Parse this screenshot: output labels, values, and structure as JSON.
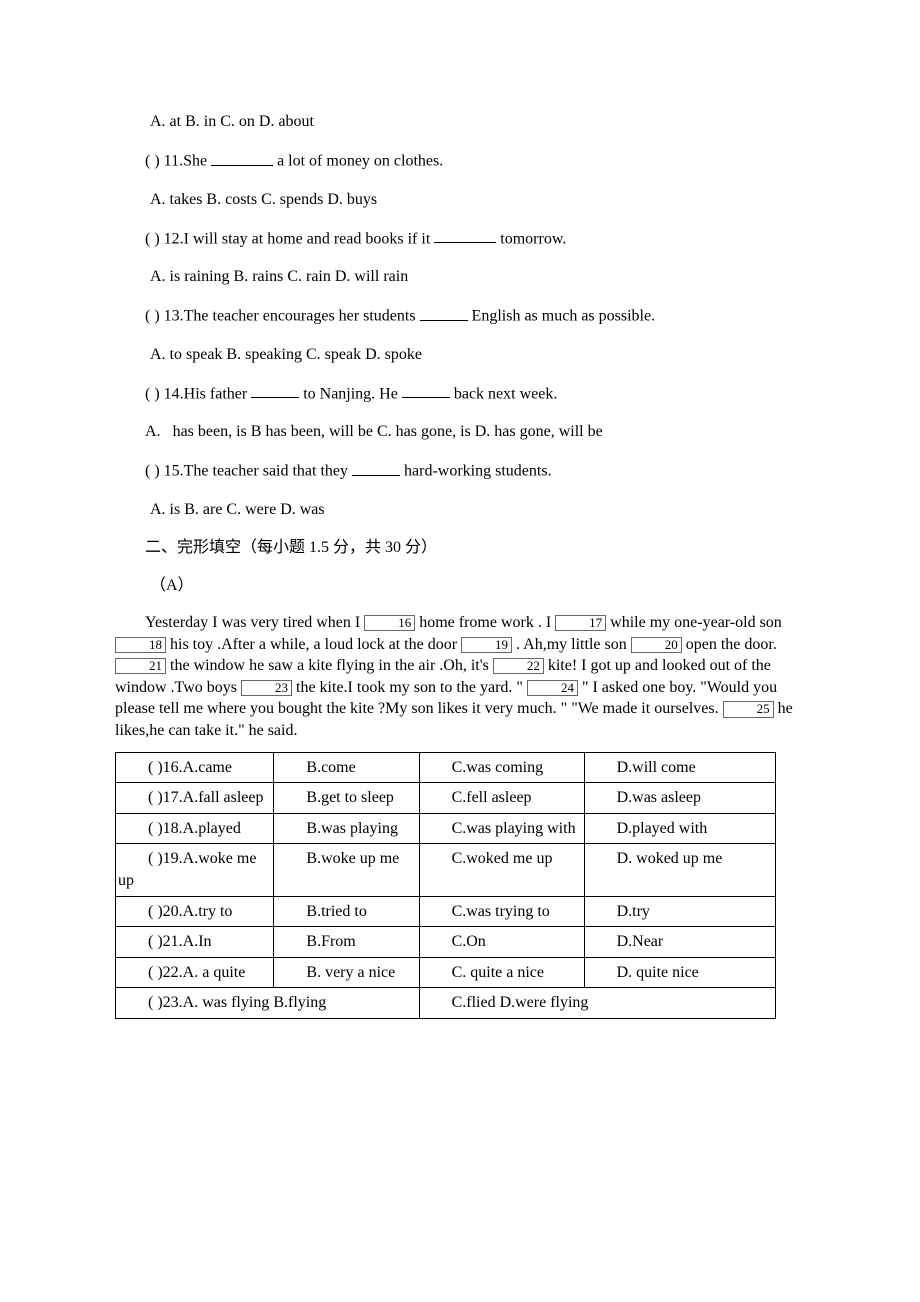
{
  "q10": {
    "options": "A. at B. in C. on D. about"
  },
  "q11": {
    "stem_a": "( ) 11.She ",
    "stem_b": " a lot of money on clothes.",
    "options": "A. takes B. costs C. spends D. buys"
  },
  "q12": {
    "stem_a": "( ) 12.I will stay at home and read books if it ",
    "stem_b": " tomorrow.",
    "options": "A. is raining B. rains C. rain D. will rain"
  },
  "q13": {
    "stem_a": "( ) 13.The teacher encourages her students ",
    "stem_b": " English as much as possible.",
    "options": "A. to speak B. speaking C. speak D. spoke"
  },
  "q14": {
    "stem_a": "( ) 14.His father ",
    "stem_b": " to Nanjing. He ",
    "stem_c": " back next week.",
    "options_prefix": "A.",
    "options_rest": "has been, is B has been, will be    C. has gone, is D. has gone, will be"
  },
  "q15": {
    "stem_a": "( ) 15.The teacher said that they ",
    "stem_b": " hard-working students.",
    "options": "A. is B. are C. were D. was"
  },
  "section2": {
    "title": "二、完形填空（每小题 1.5 分，共 30 分）",
    "subtitle": "（A）"
  },
  "passage": {
    "p1": "Yesterday I was very tired when I ",
    "b16": "16",
    "p2": " home frome work . I ",
    "b17": "17",
    "p3": " while my one-year-old son ",
    "b18": "18",
    "p4": " his toy .After a while, a loud lock at the door ",
    "b19": "19",
    "p5": " . Ah,my little son ",
    "b20": "20",
    "p6": " open the door. ",
    "b21": "21",
    "p7": " the window he saw a kite flying in the air .Oh, it's ",
    "b22": "22",
    "p8": " kite! I got up and looked out of the window .Two boys ",
    "b23": "23",
    "p9": " the kite.I took my son to the yard. \" ",
    "b24": "24",
    "p10": " \" I asked one boy. \"Would you please tell me where you bought the kite ?My son likes it very much. \" \"We made it ourselves. ",
    "b25": "25",
    "p11": " he likes,he can take it.\" he said."
  },
  "table": {
    "r16": {
      "a": "( )16.A.came",
      "b": "B.come",
      "c": "C.was coming",
      "d": "D.will come"
    },
    "r17": {
      "a": "( )17.A.fall asleep",
      "b": "B.get to sleep",
      "c": "C.fell asleep",
      "d": "D.was asleep"
    },
    "r18": {
      "a": "( )18.A.played",
      "b": "B.was playing",
      "c": "C.was playing with",
      "d": "D.played with"
    },
    "r19": {
      "a": "( )19.A.woke me up",
      "b": "B.woke up me",
      "c": "C.woked me up",
      "d": "D. woked up me"
    },
    "r20": {
      "a": "( )20.A.try to",
      "b": "B.tried to",
      "c": "C.was trying to",
      "d": "D.try"
    },
    "r21": {
      "a": "( )21.A.In",
      "b": "B.From",
      "c": "C.On",
      "d": "D.Near"
    },
    "r22": {
      "a": "( )22.A. a quite",
      "b": "B. very a nice",
      "c": "C. quite a nice",
      "d": "D. quite nice"
    },
    "r23": {
      "ab": "( )23.A. was flying B.flying",
      "cd": "C.flied  D.were flying"
    }
  }
}
